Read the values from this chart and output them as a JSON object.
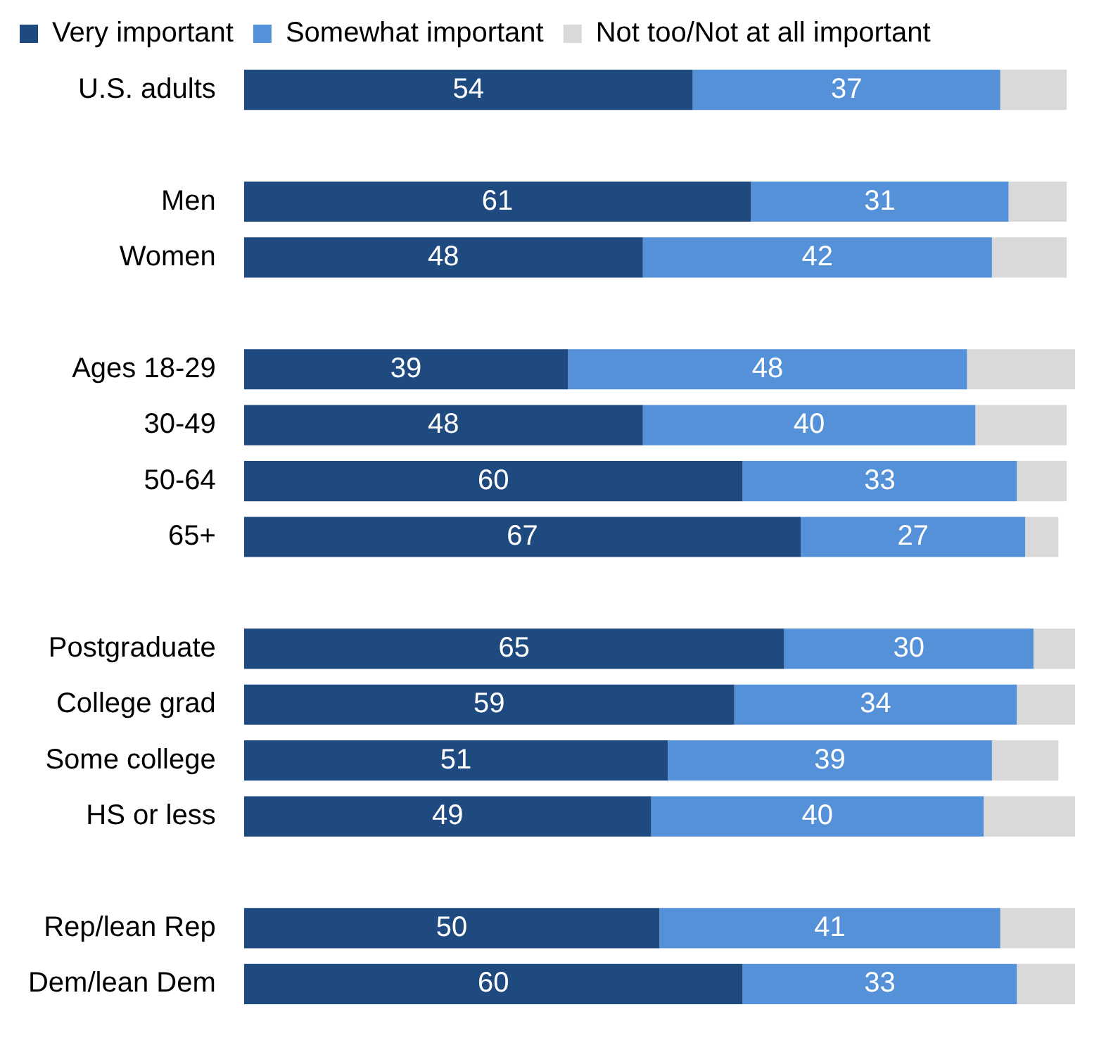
{
  "chart_data": {
    "type": "bar",
    "orientation": "horizontal",
    "stacked": true,
    "legend": "top left",
    "tick_labels": "y",
    "xlim": [
      0,
      100
    ],
    "categories": [
      "U.S. adults",
      null,
      "Men",
      "Women",
      null,
      "Ages 18-29",
      "30-49",
      "50-64",
      "65+",
      null,
      "Postgraduate",
      "College grad",
      "Some college",
      "HS or less",
      null,
      "Rep/lean Rep",
      "Dem/lean Dem"
    ],
    "series": [
      {
        "name": "Very important",
        "color": "#1f4a80",
        "values": [
          54,
          null,
          61,
          48,
          null,
          39,
          48,
          60,
          67,
          null,
          65,
          59,
          51,
          49,
          null,
          50,
          60
        ],
        "value_labels": [
          "54",
          null,
          "61",
          "48",
          null,
          "39",
          "48",
          "60",
          "67",
          null,
          "65",
          "59",
          "51",
          "49",
          null,
          "50",
          "60"
        ]
      },
      {
        "name": "Somewhat important",
        "color": "#5591d8",
        "values": [
          37,
          null,
          31,
          42,
          null,
          48,
          40,
          33,
          27,
          null,
          30,
          34,
          39,
          40,
          null,
          41,
          33
        ],
        "value_labels": [
          "37",
          null,
          "31",
          "42",
          null,
          "48",
          "40",
          "33",
          "27",
          null,
          "30",
          "34",
          "39",
          "40",
          null,
          "41",
          "33"
        ]
      },
      {
        "name": "Not too/Not at all important",
        "color": "#d9d9d9",
        "values": [
          8,
          null,
          7,
          9,
          null,
          13,
          11,
          6,
          4,
          null,
          5,
          7,
          8,
          11,
          null,
          9,
          7
        ]
      }
    ]
  }
}
